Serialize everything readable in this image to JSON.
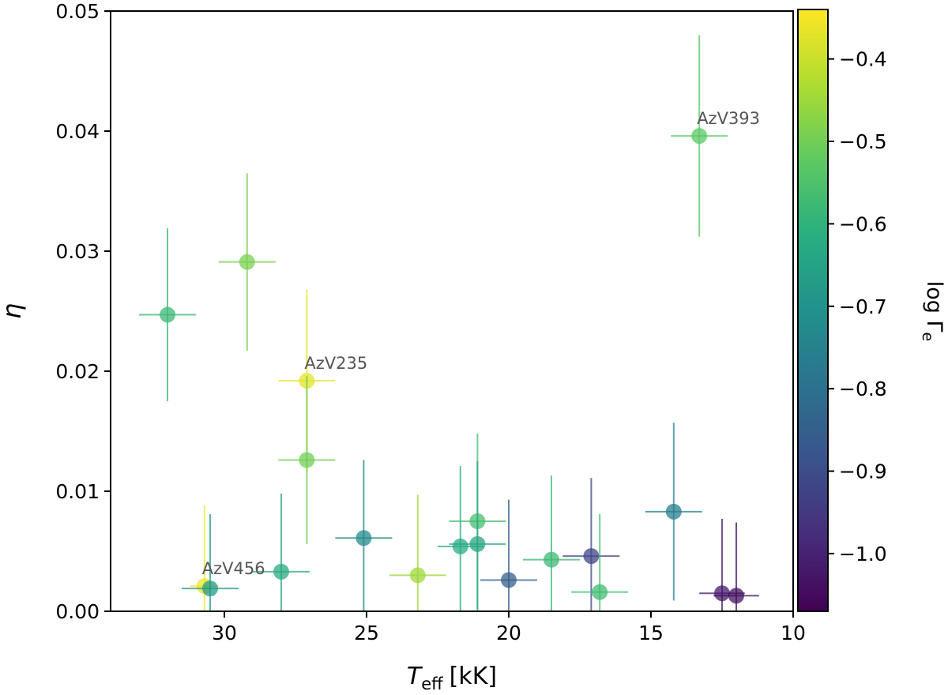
{
  "chart_data": {
    "type": "scatter",
    "xlabel_main": "T",
    "xlabel_sub": "eff",
    "xlabel_unit": "[kK]",
    "ylabel": "η",
    "colorbar_label": "log Γ",
    "colorbar_label_sub": "e",
    "xlim": [
      34,
      10
    ],
    "ylim": [
      0,
      0.05
    ],
    "clim": [
      -1.07,
      -0.34
    ],
    "x_ticks": [
      30,
      25,
      20,
      15,
      10
    ],
    "x_tick_labels": [
      "30",
      "25",
      "20",
      "15",
      "10"
    ],
    "y_ticks": [
      0.0,
      0.01,
      0.02,
      0.03,
      0.04,
      0.05
    ],
    "y_tick_labels": [
      "0.00",
      "0.01",
      "0.02",
      "0.03",
      "0.04",
      "0.05"
    ],
    "colorbar_ticks": [
      -1.0,
      -0.9,
      -0.8,
      -0.7,
      -0.6,
      -0.5,
      -0.4
    ],
    "colorbar_tick_labels": [
      "−1.0",
      "−0.9",
      "−0.8",
      "−0.7",
      "−0.6",
      "−0.5",
      "−0.4"
    ],
    "points": [
      {
        "x": 32.0,
        "y": 0.0247,
        "xerr": 1.0,
        "yerr": 0.0072,
        "c": -0.58
      },
      {
        "x": 29.2,
        "y": 0.0291,
        "xerr": 1.0,
        "yerr": 0.0074,
        "c": -0.49
      },
      {
        "x": 27.1,
        "y": 0.0192,
        "xerr": 1.0,
        "yerr": 0.0076,
        "c": -0.37,
        "label": "AzV235"
      },
      {
        "x": 27.1,
        "y": 0.0126,
        "xerr": 1.0,
        "yerr": 0.007,
        "c": -0.5
      },
      {
        "x": 13.3,
        "y": 0.0396,
        "xerr": 1.0,
        "yerr": 0.0084,
        "c": -0.53,
        "label": "AzV393"
      },
      {
        "x": 30.7,
        "y": 0.0021,
        "xerr": 0.5,
        "yerr": 0.0067,
        "c": -0.36,
        "label": "AzV456"
      },
      {
        "x": 30.5,
        "y": 0.0019,
        "xerr": 1.0,
        "yerr": 0.0062,
        "c": -0.68
      },
      {
        "x": 28.0,
        "y": 0.0033,
        "xerr": 1.0,
        "yerr": 0.0065,
        "c": -0.63
      },
      {
        "x": 25.1,
        "y": 0.0061,
        "xerr": 1.0,
        "yerr": 0.0065,
        "c": -0.73
      },
      {
        "x": 23.2,
        "y": 0.003,
        "xerr": 1.0,
        "yerr": 0.0067,
        "c": -0.45
      },
      {
        "x": 21.7,
        "y": 0.0054,
        "xerr": 0.8,
        "yerr": 0.0067,
        "c": -0.62
      },
      {
        "x": 21.1,
        "y": 0.0075,
        "xerr": 1.0,
        "yerr": 0.0073,
        "c": -0.56
      },
      {
        "x": 21.1,
        "y": 0.0056,
        "xerr": 1.0,
        "yerr": 0.0069,
        "c": -0.64
      },
      {
        "x": 20.0,
        "y": 0.0026,
        "xerr": 1.0,
        "yerr": 0.0067,
        "c": -0.85
      },
      {
        "x": 18.5,
        "y": 0.0043,
        "xerr": 1.0,
        "yerr": 0.007,
        "c": -0.58
      },
      {
        "x": 17.1,
        "y": 0.0046,
        "xerr": 1.0,
        "yerr": 0.0065,
        "c": -0.92
      },
      {
        "x": 16.8,
        "y": 0.0016,
        "xerr": 1.0,
        "yerr": 0.0065,
        "c": -0.57
      },
      {
        "x": 14.2,
        "y": 0.0083,
        "xerr": 1.0,
        "yerr": 0.0074,
        "c": -0.76
      },
      {
        "x": 12.5,
        "y": 0.0015,
        "xerr": 0.8,
        "yerr": 0.0062,
        "c": -1.02
      },
      {
        "x": 12.0,
        "y": 0.0013,
        "xerr": 0.8,
        "yerr": 0.0061,
        "c": -1.04
      }
    ]
  }
}
